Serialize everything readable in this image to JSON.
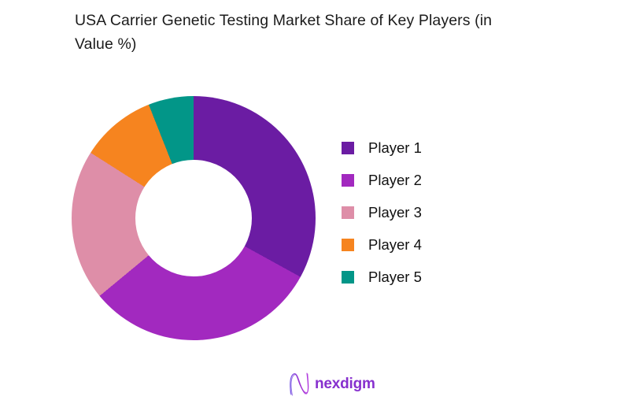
{
  "title": {
    "text": "USA Carrier Genetic Testing Market Share of Key Players (in Value %)",
    "line1": "USA Carrier Genetic Testing Market Share of Key Players (in",
    "line2": "Value %)"
  },
  "chart_data": {
    "type": "pie",
    "subtype": "donut",
    "title": "USA Carrier Genetic Testing Market Share of Key Players (in Value %)",
    "categories": [
      "Player 1",
      "Player 2",
      "Player 3",
      "Player 4",
      "Player 5"
    ],
    "values": [
      33,
      31,
      20,
      10,
      6
    ],
    "unit": "percent",
    "colors": [
      "#6B1CA3",
      "#A229BF",
      "#DE8EA8",
      "#F6841F",
      "#029688"
    ],
    "start_angle_deg": 0,
    "direction": "clockwise",
    "donut_hole_ratio": 0.48,
    "legend_position": "right",
    "data_labels": false
  },
  "footer": {
    "logo_text": "nexdigm",
    "logo_color": "#8730CE",
    "logo_mark": "nexdigm-n-wave-mark",
    "logo_gradient_start": "#6A5BE8",
    "logo_gradient_end": "#B43BE0"
  }
}
